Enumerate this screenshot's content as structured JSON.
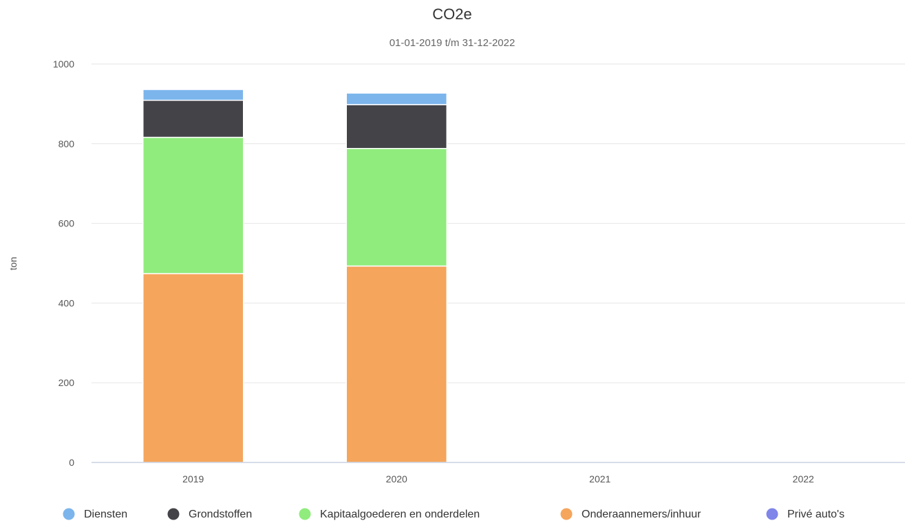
{
  "chart_data": {
    "type": "bar",
    "stacked": true,
    "title": "CO2e",
    "subtitle": "01-01-2019 t/m 31-12-2022",
    "ylabel": "ton",
    "xlabel": "",
    "ylim": [
      0,
      1000
    ],
    "yticks": [
      0,
      200,
      400,
      600,
      800,
      1000
    ],
    "grid": true,
    "legend_position": "bottom",
    "categories": [
      "2019",
      "2020",
      "2021",
      "2022"
    ],
    "series": [
      {
        "name": "Onderaannemers/inhuur",
        "color": "#f5a55c",
        "values": [
          474,
          493,
          0,
          0
        ]
      },
      {
        "name": "Kapitaalgoederen en onderdelen",
        "color": "#90ec7d",
        "values": [
          342,
          295,
          0,
          0
        ]
      },
      {
        "name": "Grondstoffen",
        "color": "#434348",
        "values": [
          93,
          110,
          0,
          0
        ]
      },
      {
        "name": "Diensten",
        "color": "#7cb5ec",
        "values": [
          27,
          29,
          0,
          0
        ]
      },
      {
        "name": "Privé auto's",
        "color": "#8085e9",
        "values": [
          0,
          0,
          0,
          0
        ]
      }
    ],
    "legend_order": [
      "Diensten",
      "Grondstoffen",
      "Kapitaalgoederen en onderdelen",
      "Onderaannemers/inhuur",
      "Privé auto's"
    ]
  }
}
